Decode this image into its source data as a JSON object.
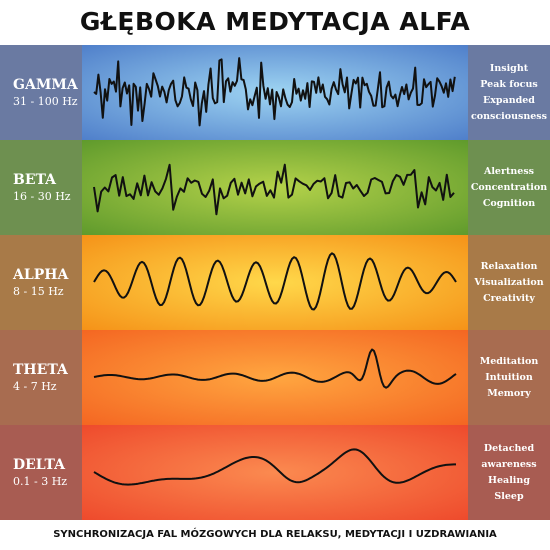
{
  "title": "GŁĘBOKA MEDYTACJA ALFA",
  "footer": "SYNCHRONIZACJA FAL MÓZGOWYCH DLA RELAKSU, MEDYTACJI I UZDRAWIANIA",
  "bands": [
    {
      "name": "GAMMA",
      "range": "31 - 100 Hz",
      "effects": [
        "Insight",
        "Peak focus",
        "Expanded",
        "consciousness"
      ],
      "colors": {
        "side": "#6a7aa2",
        "center": "#9ed4f2",
        "edge": "#4f7fca"
      }
    },
    {
      "name": "BETA",
      "range": "16 - 30 Hz",
      "effects": [
        "Alertness",
        "Concentration",
        "Cognition"
      ],
      "colors": {
        "side": "#6e9050",
        "center": "#b4d24a",
        "edge": "#5f9a2c"
      }
    },
    {
      "name": "ALPHA",
      "range": "8 - 15 Hz",
      "effects": [
        "Relaxation",
        "Visualization",
        "Creativity"
      ],
      "colors": {
        "side": "#a87a48",
        "center": "#ffd84a",
        "edge": "#f59218"
      }
    },
    {
      "name": "THETA",
      "range": "4 - 7 Hz",
      "effects": [
        "Meditation",
        "Intuition",
        "Memory"
      ],
      "colors": {
        "side": "#a86c50",
        "center": "#ffa640",
        "edge": "#f46622"
      }
    },
    {
      "name": "DELTA",
      "range": "0.1 - 3 Hz",
      "effects": [
        "Detached",
        "awareness",
        "Healing",
        "Sleep"
      ],
      "colors": {
        "side": "#a85c52",
        "center": "#fb8a50",
        "edge": "#ee4a2c"
      }
    }
  ]
}
